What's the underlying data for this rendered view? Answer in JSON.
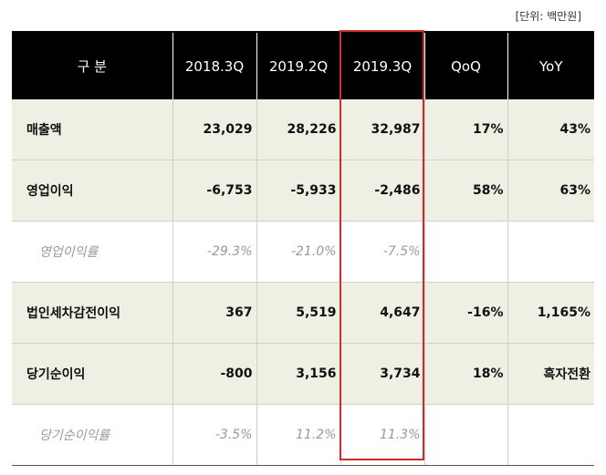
{
  "unit_label": "[단위: 백만원]",
  "header": [
    "구 분",
    "2018.3Q",
    "2019.2Q",
    "2019.3Q",
    "QoQ",
    "YoY"
  ],
  "rows": [
    {
      "label": "매출액",
      "cells": [
        "23,029",
        "28,226",
        "32,987",
        "17%",
        "43%"
      ]
    },
    {
      "label": "영업이익",
      "cells": [
        "-6,753",
        "-5,933",
        "-2,486",
        "58%",
        "63%"
      ]
    },
    {
      "label": "영업이익률",
      "cells": [
        "-29.3%",
        "-21.0%",
        "-7.5%",
        "",
        ""
      ]
    },
    {
      "label": "법인세차감전이익",
      "cells": [
        "367",
        "5,519",
        "4,647",
        "-16%",
        "1,165%"
      ]
    },
    {
      "label": "당기순이익",
      "cells": [
        "-800",
        "3,156",
        "3,734",
        "18%",
        "흑자전환"
      ]
    },
    {
      "label": "당기순이익률",
      "cells": [
        "-3.5%",
        "11.2%",
        "11.3%",
        "",
        ""
      ]
    }
  ],
  "colors": {
    "header_bg": "#000000",
    "row_bg": "#edf0e2",
    "highlight": "#d02a2a",
    "sub_text": "#999999"
  }
}
